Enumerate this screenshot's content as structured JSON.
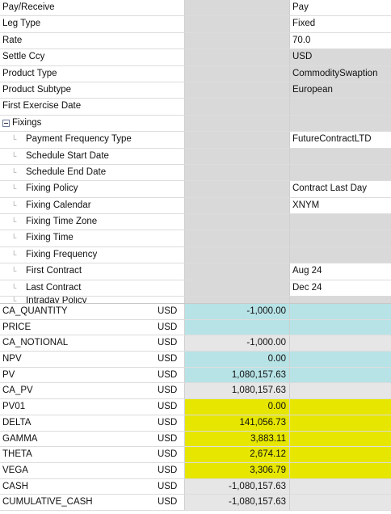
{
  "properties": [
    {
      "label": "Pay/Receive",
      "value": "Pay",
      "grey": false
    },
    {
      "label": "Leg Type",
      "value": "Fixed",
      "grey": false
    },
    {
      "label": "Rate",
      "value": "70.0",
      "grey": false
    },
    {
      "label": "Settle Ccy",
      "value": "USD",
      "grey": true
    },
    {
      "label": "Product Type",
      "value": "CommoditySwaption",
      "grey": true
    },
    {
      "label": "Product Subtype",
      "value": "European",
      "grey": true
    },
    {
      "label": "First Exercise Date",
      "value": "",
      "grey": true
    }
  ],
  "fixings": {
    "section_label": "Fixings",
    "items": [
      {
        "label": "Payment Frequency Type",
        "value": "FutureContractLTD",
        "grey": false
      },
      {
        "label": "Schedule Start Date",
        "value": "",
        "grey": true
      },
      {
        "label": "Schedule End Date",
        "value": "",
        "grey": true
      },
      {
        "label": "Fixing Policy",
        "value": "Contract Last Day",
        "grey": false
      },
      {
        "label": "Fixing Calendar",
        "value": "XNYM",
        "grey": false
      },
      {
        "label": "Fixing Time Zone",
        "value": "",
        "grey": true
      },
      {
        "label": "Fixing Time",
        "value": "",
        "grey": true
      },
      {
        "label": "Fixing Frequency",
        "value": "",
        "grey": true
      },
      {
        "label": "First Contract",
        "value": "Aug 24",
        "grey": false
      },
      {
        "label": "Last Contract",
        "value": "Dec 24",
        "grey": false
      },
      {
        "label": "Intraday Policy",
        "value": "",
        "grey": true
      }
    ]
  },
  "measures": [
    {
      "name": "CA_QUANTITY",
      "ccy": "USD",
      "value": "-1,000.00",
      "color": "cyan"
    },
    {
      "name": "PRICE",
      "ccy": "USD",
      "value": "",
      "color": "cyan"
    },
    {
      "name": "CA_NOTIONAL",
      "ccy": "USD",
      "value": "-1,000.00",
      "color": "lgrey"
    },
    {
      "name": "NPV",
      "ccy": "USD",
      "value": "0.00",
      "color": "cyan"
    },
    {
      "name": "PV",
      "ccy": "USD",
      "value": "1,080,157.63",
      "color": "cyan"
    },
    {
      "name": "CA_PV",
      "ccy": "USD",
      "value": "1,080,157.63",
      "color": "lgrey"
    },
    {
      "name": "PV01",
      "ccy": "USD",
      "value": "0.00",
      "color": "yellow"
    },
    {
      "name": "DELTA",
      "ccy": "USD",
      "value": "141,056.73",
      "color": "yellow"
    },
    {
      "name": "GAMMA",
      "ccy": "USD",
      "value": "3,883.11",
      "color": "yellow"
    },
    {
      "name": "THETA",
      "ccy": "USD",
      "value": "2,674.12",
      "color": "yellow"
    },
    {
      "name": "VEGA",
      "ccy": "USD",
      "value": "3,306.79",
      "color": "yellow"
    },
    {
      "name": "CASH",
      "ccy": "USD",
      "value": "-1,080,157.63",
      "color": "lgrey"
    },
    {
      "name": "CUMULATIVE_CASH",
      "ccy": "USD",
      "value": "-1,080,157.63",
      "color": "lgrey"
    }
  ],
  "icons": {
    "collapse": "collapse-minus-icon",
    "tree_connector": "tree-connector-icon"
  }
}
